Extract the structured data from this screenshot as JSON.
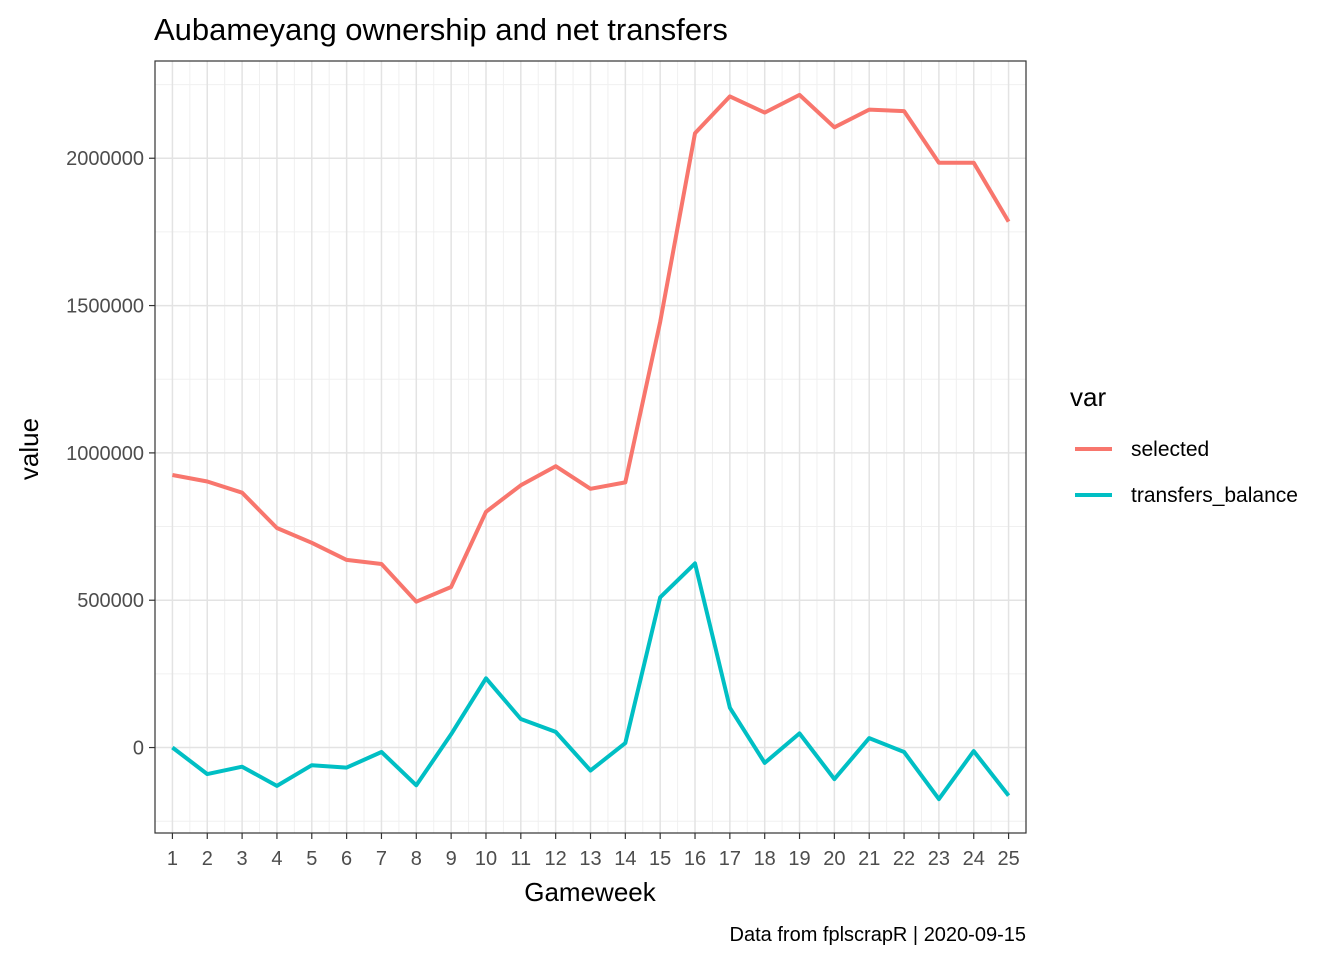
{
  "chart_data": {
    "type": "line",
    "title": "Aubameyang ownership and net transfers",
    "xlabel": "Gameweek",
    "ylabel": "value",
    "caption": "Data from fplscrapR | 2020-09-15",
    "x": [
      1,
      2,
      3,
      4,
      5,
      6,
      7,
      8,
      9,
      10,
      11,
      12,
      13,
      14,
      15,
      16,
      17,
      18,
      19,
      20,
      21,
      22,
      23,
      24,
      25
    ],
    "xlim": [
      0.5,
      25.5
    ],
    "ylim": [
      -290000,
      2330000
    ],
    "y_ticks": [
      0,
      500000,
      1000000,
      1500000,
      2000000
    ],
    "y_tick_labels": [
      "0",
      "500000",
      "1000000",
      "1500000",
      "2000000"
    ],
    "grid": true,
    "legend": {
      "title": "var",
      "position": "right"
    },
    "series": [
      {
        "name": "selected",
        "color": "#F8766D",
        "values": [
          925000,
          903000,
          865000,
          745000,
          695000,
          637000,
          623000,
          495000,
          545000,
          800000,
          890000,
          955000,
          878000,
          900000,
          1445000,
          2085000,
          2210000,
          2155000,
          2215000,
          2105000,
          2165000,
          2160000,
          1985000,
          1985000,
          1785000
        ]
      },
      {
        "name": "transfers_balance",
        "color": "#00BFC4",
        "values": [
          0,
          -90000,
          -65000,
          -130000,
          -60000,
          -68000,
          -15000,
          -128000,
          45000,
          235000,
          97000,
          53000,
          -78000,
          15000,
          510000,
          625000,
          135000,
          -52000,
          48000,
          -107000,
          32000,
          -15000,
          -175000,
          -12000,
          -163000
        ]
      }
    ]
  }
}
